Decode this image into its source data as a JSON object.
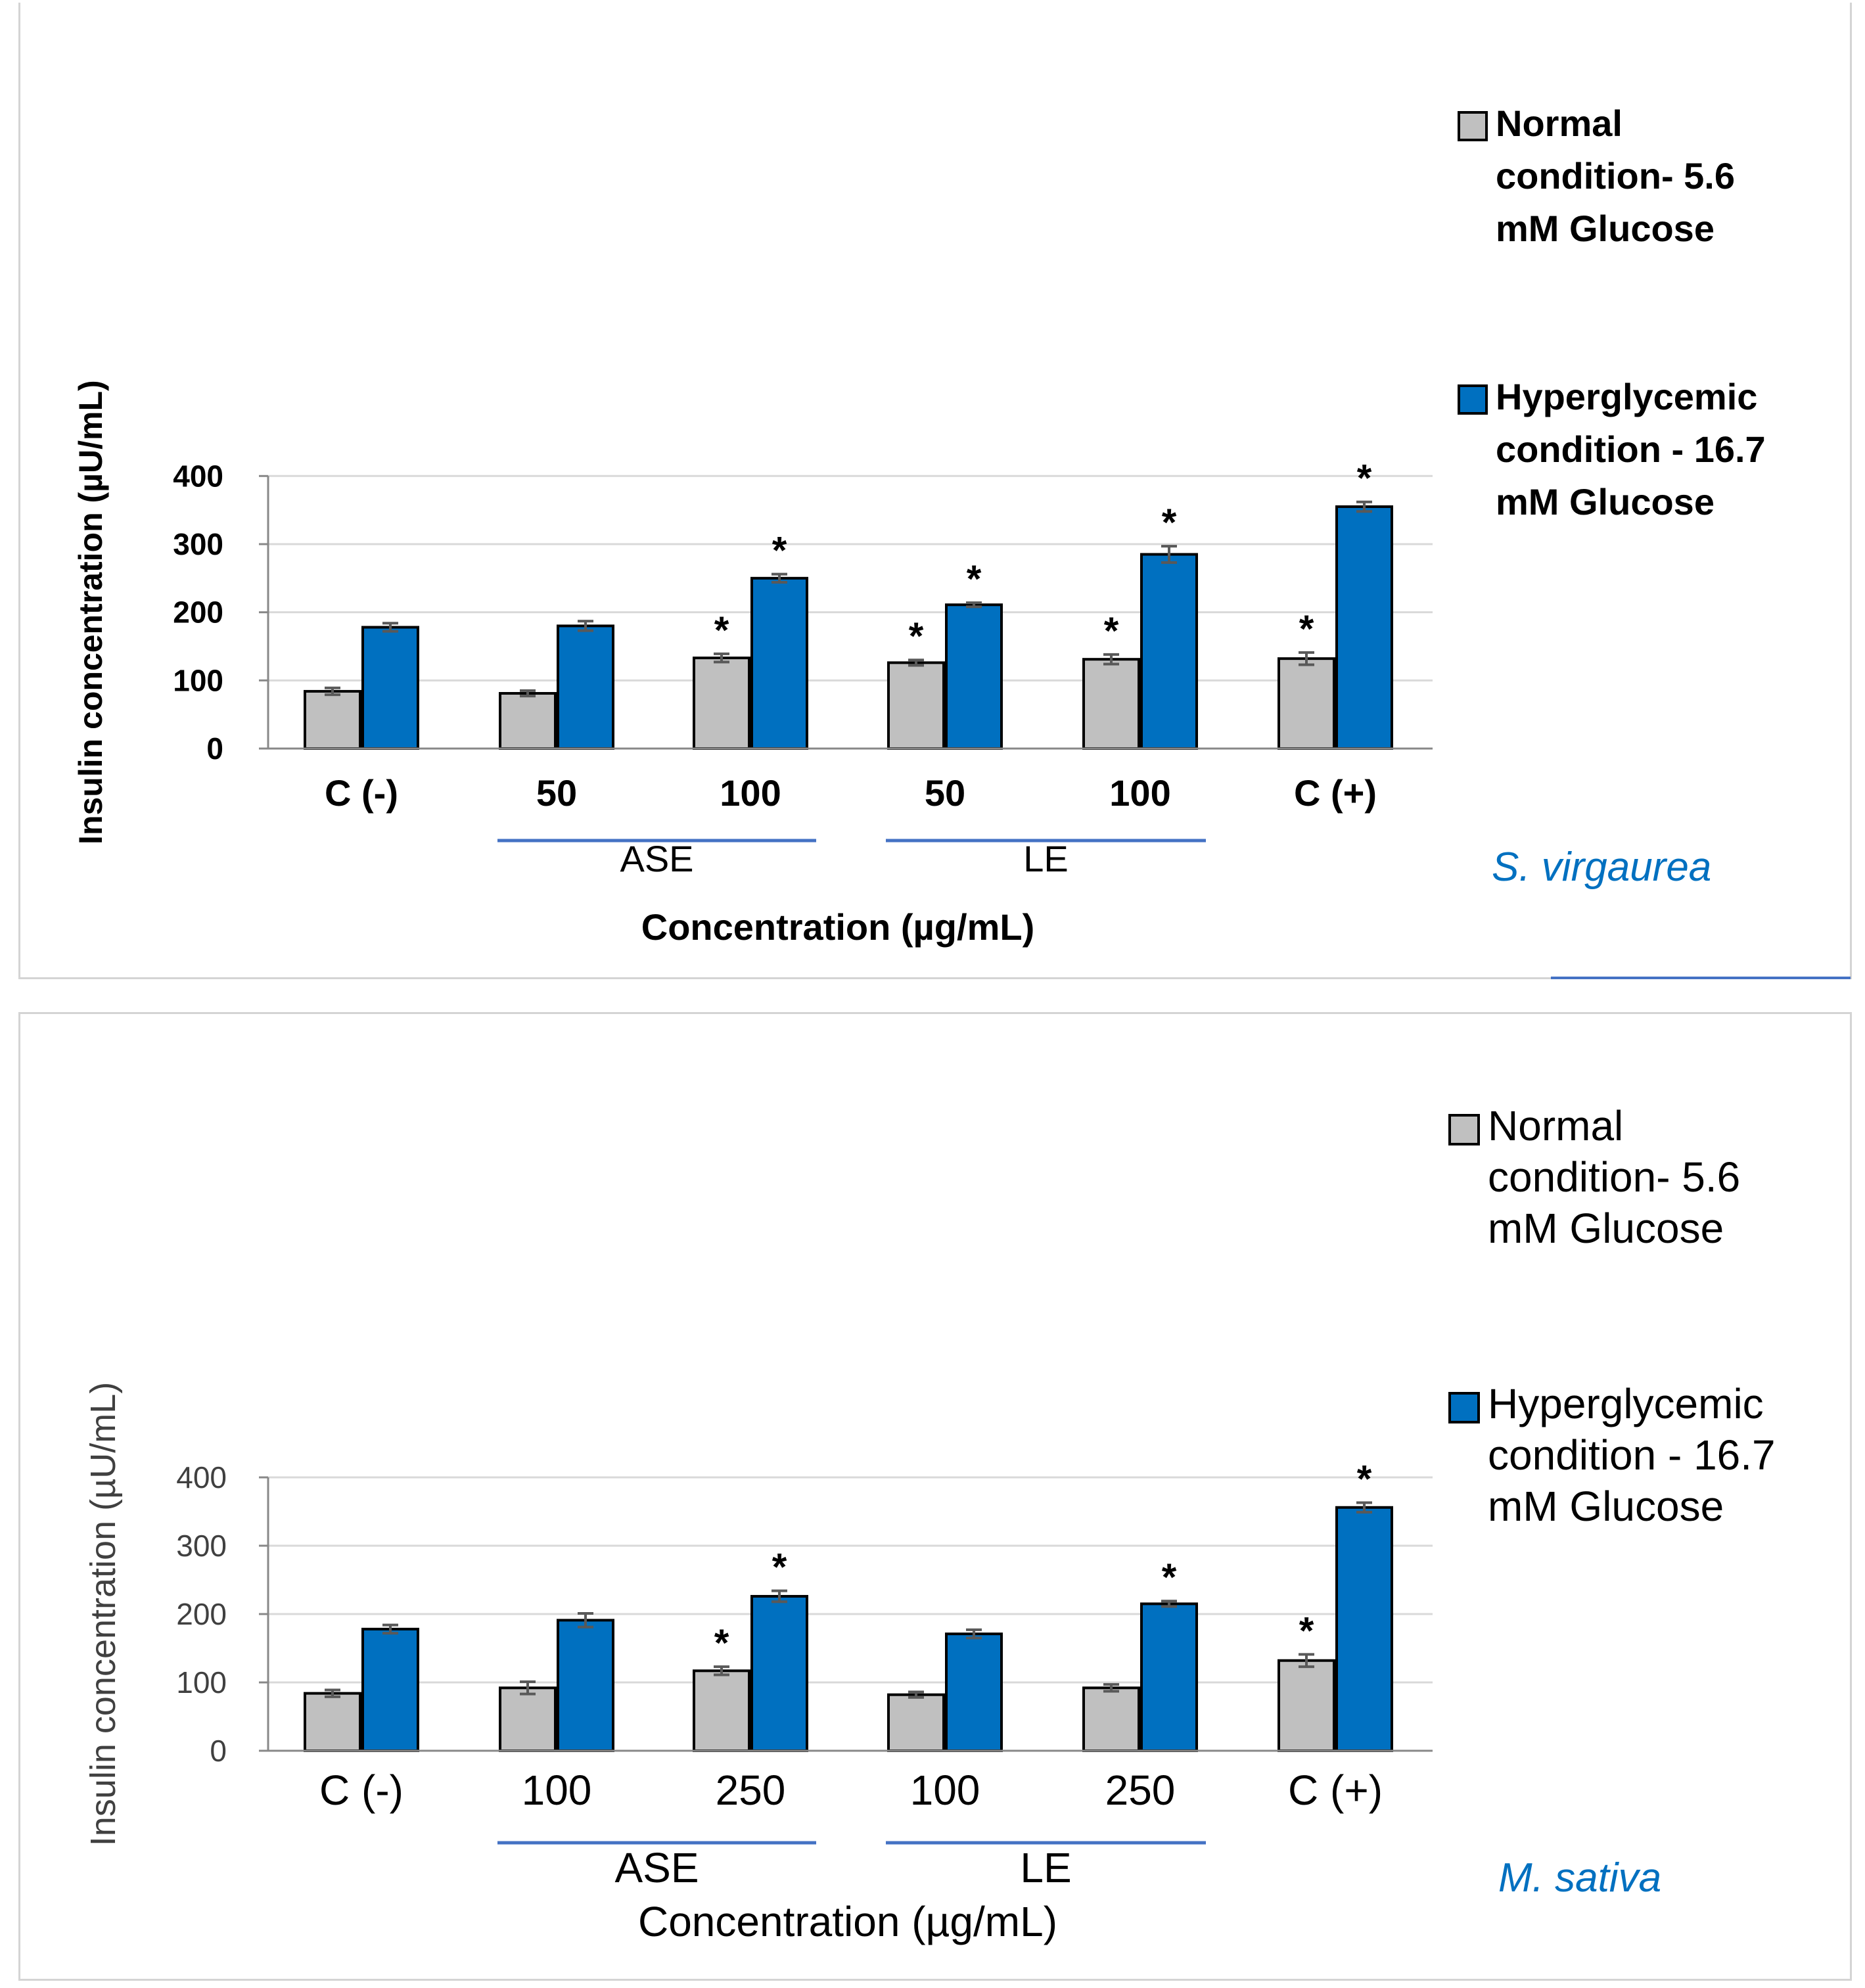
{
  "chart_data": [
    {
      "type": "bar",
      "species": "S. virgaurea",
      "ylabel": "Insulin concentration (µU/mL)",
      "xlabel": "Concentration (µg/mL)",
      "ylim": [
        0,
        400
      ],
      "yticks": [
        0,
        100,
        200,
        300,
        400
      ],
      "grid": true,
      "legend_position": "right",
      "categories": [
        "C (-)",
        "50",
        "100",
        "50",
        "100",
        "C (+)"
      ],
      "groups": [
        {
          "label": "ASE",
          "start": 1,
          "end": 2
        },
        {
          "label": "LE",
          "start": 3,
          "end": 4
        }
      ],
      "series": [
        {
          "name": "Normal condition- 5.6 mM Glucose",
          "color": "#c0c0c0",
          "legend_lines": [
            "Normal",
            "condition- 5.6",
            "mM Glucose"
          ],
          "values": [
            84,
            81,
            133,
            126,
            131,
            132
          ],
          "errors": [
            5,
            4,
            6,
            4,
            7,
            9
          ],
          "significant": [
            false,
            false,
            true,
            true,
            true,
            true
          ]
        },
        {
          "name": "Hyperglycemic condition - 16.7 mM Glucose",
          "color": "#0070c0",
          "legend_lines": [
            "Hyperglycemic",
            "condition - 16.7",
            "mM Glucose"
          ],
          "values": [
            178,
            180,
            250,
            211,
            285,
            355
          ],
          "errors": [
            6,
            7,
            6,
            3,
            12,
            7
          ],
          "significant": [
            false,
            false,
            true,
            true,
            true,
            true
          ]
        }
      ]
    },
    {
      "type": "bar",
      "species": "M. sativa",
      "ylabel": "Insulin concentration (µU/mL)",
      "xlabel": "Concentration (µg/mL)",
      "ylim": [
        0,
        400
      ],
      "yticks": [
        0,
        100,
        200,
        300,
        400
      ],
      "grid": true,
      "legend_position": "right",
      "categories": [
        "C (-)",
        "100",
        "250",
        "100",
        "250",
        "C (+)"
      ],
      "groups": [
        {
          "label": "ASE",
          "start": 1,
          "end": 2
        },
        {
          "label": "LE",
          "start": 3,
          "end": 4
        }
      ],
      "series": [
        {
          "name": "Normal condition- 5.6 mM Glucose",
          "color": "#c0c0c0",
          "legend_lines": [
            "Normal",
            "condition- 5.6",
            "mM Glucose"
          ],
          "values": [
            84,
            92,
            117,
            82,
            92,
            132
          ],
          "errors": [
            5,
            9,
            6,
            4,
            5,
            9
          ],
          "significant": [
            false,
            false,
            true,
            false,
            false,
            true
          ]
        },
        {
          "name": "Hyperglycemic condition - 16.7 mM Glucose",
          "color": "#0070c0",
          "legend_lines": [
            "Hyperglycemic",
            "condition - 16.7",
            "mM Glucose"
          ],
          "values": [
            178,
            191,
            226,
            171,
            215,
            356
          ],
          "errors": [
            6,
            10,
            8,
            6,
            4,
            7
          ],
          "significant": [
            false,
            false,
            true,
            false,
            true,
            true
          ]
        }
      ]
    }
  ]
}
